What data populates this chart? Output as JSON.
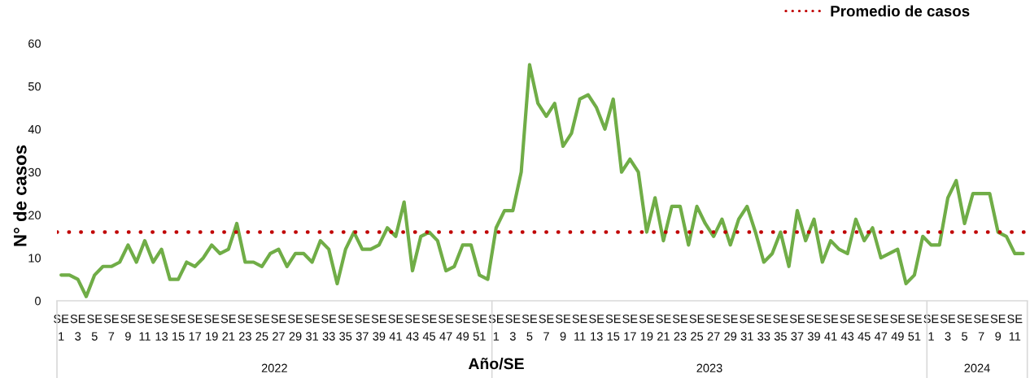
{
  "chart_data": {
    "type": "line",
    "categories": [
      "SE\n1",
      null,
      "SE\n3",
      null,
      "SE\n5",
      null,
      "SE\n7",
      null,
      "SE\n9",
      null,
      "SE\n11",
      null,
      "SE\n13",
      null,
      "SE\n15",
      null,
      "SE\n17",
      null,
      "SE\n19",
      null,
      "SE\n21",
      null,
      "SE\n23",
      null,
      "SE\n25",
      null,
      "SE\n27",
      null,
      "SE\n29",
      null,
      "SE\n31",
      null,
      "SE\n33",
      null,
      "SE\n35",
      null,
      "SE\n37",
      null,
      "SE\n39",
      null,
      "SE\n41",
      null,
      "SE\n43",
      null,
      "SE\n45",
      null,
      "SE\n47",
      null,
      "SE\n49",
      null,
      "SE\n51",
      null,
      "SE\n1",
      null,
      "SE\n3",
      null,
      "SE\n5",
      null,
      "SE\n7",
      null,
      "SE\n9",
      null,
      "SE\n11",
      null,
      "SE\n13",
      null,
      "SE\n15",
      null,
      "SE\n17",
      null,
      "SE\n19",
      null,
      "SE\n21",
      null,
      "SE\n23",
      null,
      "SE\n25",
      null,
      "SE\n27",
      null,
      "SE\n29",
      null,
      "SE\n31",
      null,
      "SE\n33",
      null,
      "SE\n35",
      null,
      "SE\n37",
      null,
      "SE\n39",
      null,
      "SE\n41",
      null,
      "SE\n43",
      null,
      "SE\n45",
      null,
      "SE\n47",
      null,
      "SE\n49",
      null,
      "SE\n51",
      null,
      "SE\n1",
      null,
      "SE\n3",
      null,
      "SE\n5",
      null,
      "SE\n7",
      null,
      "SE\n9",
      null,
      "SE\n11",
      null
    ],
    "series": [
      {
        "color": "#70ad47",
        "values": [
          6,
          6,
          5,
          1,
          6,
          8,
          8,
          9,
          13,
          9,
          14,
          9,
          12,
          5,
          5,
          9,
          8,
          10,
          13,
          11,
          12,
          18,
          9,
          9,
          8,
          11,
          12,
          8,
          11,
          11,
          9,
          14,
          12,
          4,
          12,
          16,
          12,
          12,
          13,
          17,
          15,
          23,
          7,
          15,
          16,
          14,
          7,
          8,
          13,
          13,
          6,
          5,
          17,
          21,
          21,
          30,
          55,
          46,
          43,
          46,
          36,
          39,
          47,
          48,
          45,
          40,
          47,
          30,
          33,
          30,
          16,
          24,
          14,
          22,
          22,
          13,
          22,
          18,
          15,
          19,
          13,
          19,
          22,
          16,
          9,
          11,
          16,
          8,
          21,
          14,
          19,
          9,
          14,
          12,
          11,
          19,
          14,
          17,
          10,
          11,
          12,
          4,
          6,
          15,
          13,
          13,
          24,
          28,
          18,
          25,
          25,
          25,
          16,
          15,
          11,
          11
        ]
      }
    ],
    "ylim": [
      0,
      60
    ],
    "yticks": [
      0,
      10,
      20,
      30,
      40,
      50,
      60
    ],
    "xlabel": "Año/SE",
    "ylabel": "N° de casos",
    "annotations": [
      "2022",
      "2023",
      "2024"
    ],
    "ref_lines": [
      {
        "axis": "y",
        "value": 16,
        "label": "Promedio de casos",
        "color": "#c00000",
        "line_style": "dotted"
      }
    ],
    "legend": "top right",
    "line_style": "solid"
  }
}
